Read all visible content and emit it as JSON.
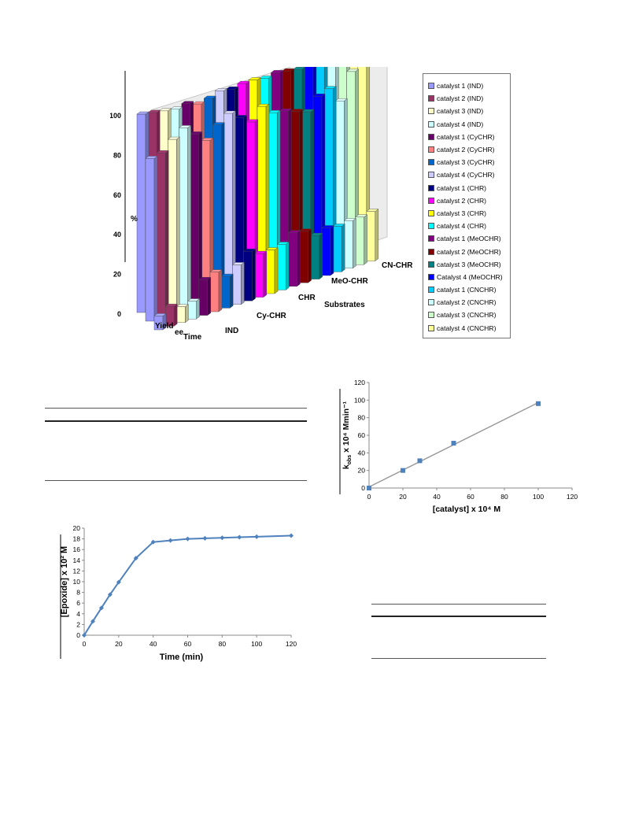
{
  "chart_data": [
    {
      "type": "bar",
      "style": "3d-grouped",
      "xlabel": "Substrates",
      "ylabel": "%",
      "ylim": [
        0,
        100
      ],
      "yticks": [
        0,
        20,
        40,
        60,
        80,
        100
      ],
      "metric_labels": [
        "Yield",
        "ee",
        "Time"
      ],
      "substrate_labels": [
        "IND",
        "Cy-CHR",
        "CHR",
        "MeO-CHR",
        "CN-CHR"
      ],
      "legend_placement": "right",
      "series": [
        {
          "name": "catalyst 1 (IND)",
          "color": "#9999ff",
          "values": [
            100,
            82,
            7
          ]
        },
        {
          "name": "catalyst 2 (IND)",
          "color": "#993366",
          "values": [
            99,
            83,
            10
          ]
        },
        {
          "name": "catalyst 3 (IND)",
          "color": "#ffffcc",
          "values": [
            98,
            88,
            8
          ]
        },
        {
          "name": "catalyst 4 (IND)",
          "color": "#ccffff",
          "values": [
            97,
            92,
            9
          ]
        },
        {
          "name": "catalyst 1 (CyCHR)",
          "color": "#660066",
          "values": [
            98,
            87,
            18
          ]
        },
        {
          "name": "catalyst 2 (CyCHR)",
          "color": "#ff8080",
          "values": [
            96,
            82,
            20
          ]
        },
        {
          "name": "catalyst 3 (CyCHR)",
          "color": "#0066cc",
          "values": [
            97,
            88,
            16
          ]
        },
        {
          "name": "catalyst 4 (CyCHR)",
          "color": "#ccccff",
          "values": [
            99,
            92,
            20
          ]
        },
        {
          "name": "catalyst 1 (CHR)",
          "color": "#000080",
          "values": [
            98,
            88,
            25
          ]
        },
        {
          "name": "catalyst 2 (CHR)",
          "color": "#ff00ff",
          "values": [
            99,
            84,
            22
          ]
        },
        {
          "name": "catalyst 3 (CHR)",
          "color": "#ffff00",
          "values": [
            99,
            90,
            22
          ]
        },
        {
          "name": "catalyst 4 (CHR)",
          "color": "#00ffff",
          "values": [
            98,
            85,
            23
          ]
        },
        {
          "name": "catalyst 1 (MeOCHR)",
          "color": "#800080",
          "values": [
            99,
            84,
            27
          ]
        },
        {
          "name": "catalyst 2 (MeOCHR)",
          "color": "#800000",
          "values": [
            98,
            82,
            26
          ]
        },
        {
          "name": "catalyst 3 (MeOCHR)",
          "color": "#008080",
          "values": [
            97,
            80,
            22
          ]
        },
        {
          "name": "Catalyst 4 (MeOCHR)",
          "color": "#0000ff",
          "values": [
            98,
            86,
            24
          ]
        },
        {
          "name": "catalyst 1 (CNCHR)",
          "color": "#00ccff",
          "values": [
            99,
            88,
            23
          ]
        },
        {
          "name": "catalyst 2 (CNCHR)",
          "color": "#ccffff",
          "values": [
            99,
            80,
            24
          ]
        },
        {
          "name": "catalyst 3 (CNCHR)",
          "color": "#ccffcc",
          "values": [
            99,
            93,
            24
          ]
        },
        {
          "name": "catalyst 4 (CNCHR)",
          "color": "#ffff99",
          "values": [
            97,
            94,
            25
          ]
        }
      ]
    },
    {
      "type": "scatter",
      "trendline": "linear",
      "xlabel": "[catalyst] x 10⁴ M",
      "ylabel": "k",
      "ylabel_sub": "obs",
      "ylabel_tail": " x 10⁴ Mmin⁻¹",
      "xlim": [
        0,
        120
      ],
      "ylim": [
        0,
        120
      ],
      "xticks": [
        0,
        20,
        40,
        60,
        80,
        100,
        120
      ],
      "yticks": [
        0,
        20,
        40,
        60,
        80,
        100,
        120
      ],
      "x": [
        0,
        20,
        30,
        50,
        100
      ],
      "y": [
        0,
        20,
        31,
        51,
        96
      ],
      "marker_color": "#4f81bd",
      "line_color": "#999999"
    },
    {
      "type": "line",
      "xlabel": "Time (min)",
      "ylabel": "[Epoxide] x 10² M",
      "xlim": [
        0,
        120
      ],
      "ylim": [
        0,
        20
      ],
      "xticks": [
        0,
        20,
        40,
        60,
        80,
        100,
        120
      ],
      "yticks": [
        0,
        2,
        4,
        6,
        8,
        10,
        12,
        14,
        16,
        18,
        20
      ],
      "x": [
        0,
        5,
        10,
        15,
        20,
        30,
        40,
        50,
        60,
        70,
        80,
        90,
        100,
        120
      ],
      "y": [
        0,
        2.6,
        5.1,
        7.6,
        9.9,
        14.4,
        17.4,
        17.7,
        18.0,
        18.1,
        18.2,
        18.3,
        18.4,
        18.6
      ],
      "color": "#4f81bd"
    }
  ]
}
